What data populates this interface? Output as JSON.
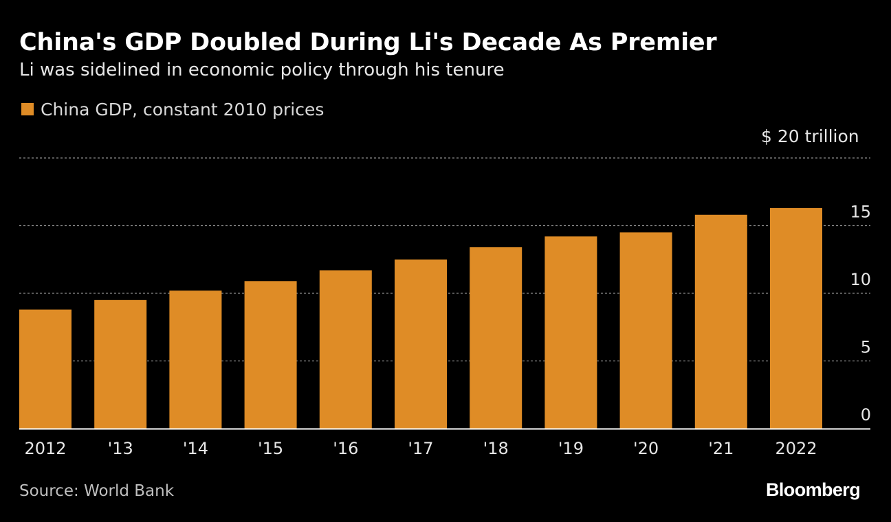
{
  "title": "China's GDP Doubled During Li's Decade As Premier",
  "subtitle": "Li was sidelined in economic policy through his tenure",
  "legend": {
    "label": "China GDP, constant 2010 prices",
    "color": "#DF8C26"
  },
  "axis_unit_label": "$ 20 trillion",
  "source": "Source: World Bank",
  "logo": "Bloomberg",
  "chart_data": {
    "type": "bar",
    "categories": [
      "2012",
      "'13",
      "'14",
      "'15",
      "'16",
      "'17",
      "'18",
      "'19",
      "'20",
      "'21",
      "2022"
    ],
    "series": [
      {
        "name": "China GDP, constant 2010 prices",
        "values": [
          8.8,
          9.5,
          10.2,
          10.9,
          11.7,
          12.5,
          13.4,
          14.2,
          14.5,
          15.8,
          16.3
        ]
      }
    ],
    "y_ticks": [
      {
        "value": 20,
        "label": ""
      },
      {
        "value": 15,
        "label": "15"
      },
      {
        "value": 10,
        "label": "10"
      },
      {
        "value": 5,
        "label": "5"
      },
      {
        "value": 0,
        "label": "0"
      }
    ],
    "ylim": [
      0,
      20
    ],
    "y_axis_side": "right",
    "grid": true,
    "legend_position": "top-left",
    "colors": {
      "bar": "#DF8C26",
      "grid": "#8c8c8c",
      "baseline": "#ffffff",
      "tick_text": "#e6e6e6"
    }
  }
}
